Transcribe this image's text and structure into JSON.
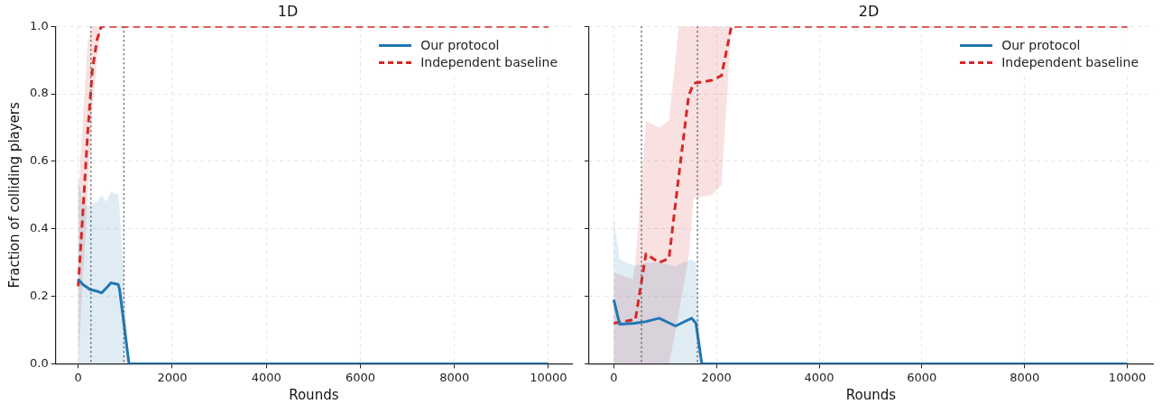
{
  "chart_data": [
    {
      "type": "line",
      "title": "1D",
      "xlabel": "Rounds",
      "ylabel": "Fraction of colliding players",
      "xlim": [
        -480,
        10500
      ],
      "xticks": [
        0,
        2000,
        4000,
        6000,
        8000,
        10000
      ],
      "ylim": [
        0,
        1
      ],
      "yticks": [
        {
          "value": 0,
          "label": "0.0"
        },
        0.2,
        0.4,
        0.6,
        0.8,
        {
          "value": 1,
          "label": "1.0"
        }
      ],
      "grid": true,
      "legend": "top right",
      "ref_lines": [
        {
          "axis": "x",
          "value": 270,
          "color": "#555555",
          "line_style": "dotted"
        },
        {
          "axis": "x",
          "value": 970,
          "color": "#555555",
          "line_style": "dotted"
        }
      ],
      "series": [
        {
          "name": "Our protocol",
          "color": "#1f77b4",
          "line_style": "solid",
          "x": [
            0,
            100,
            250,
            400,
            500,
            600,
            700,
            850,
            880,
            1080,
            10000
          ],
          "values": [
            0.25,
            0.235,
            0.22,
            0.215,
            0.21,
            0.225,
            0.24,
            0.235,
            0.22,
            0,
            0
          ],
          "lower": [
            0,
            0,
            0,
            0,
            0,
            0,
            0,
            0,
            0,
            0,
            0
          ],
          "upper": [
            0.55,
            0.47,
            0.47,
            0.48,
            0.5,
            0.48,
            0.51,
            0.5,
            0.46,
            0,
            0
          ]
        },
        {
          "name": "Independent baseline",
          "color": "#d62728",
          "line_style": "dashed",
          "x": [
            0,
            100,
            200,
            300,
            400,
            490,
            10000
          ],
          "values": [
            0.23,
            0.45,
            0.68,
            0.87,
            0.96,
            1,
            1
          ],
          "lower": [
            0,
            0.25,
            0.5,
            0.75,
            0.9,
            1,
            1
          ],
          "upper": [
            0.5,
            0.72,
            0.95,
            1,
            1,
            1,
            1
          ]
        }
      ]
    },
    {
      "type": "line",
      "title": "2D",
      "xlabel": "Rounds",
      "xlim": [
        -480,
        10500
      ],
      "xticks": [
        0,
        2000,
        4000,
        6000,
        8000,
        10000
      ],
      "ylim": [
        0,
        1
      ],
      "yticks": [
        0,
        0.2,
        0.4,
        0.6,
        0.8,
        1
      ],
      "grid": true,
      "legend": "top right",
      "tick_labels": "x",
      "ref_lines": [
        {
          "axis": "x",
          "value": 540,
          "color": "#555555",
          "line_style": "dotted"
        },
        {
          "axis": "x",
          "value": 1630,
          "color": "#555555",
          "line_style": "dotted"
        }
      ],
      "series": [
        {
          "name": "Our protocol",
          "color": "#1f77b4",
          "line_style": "solid",
          "x": [
            0,
            115,
            400,
            627,
            883,
            1203,
            1517,
            1600,
            1714,
            10000
          ],
          "values": [
            0.19,
            0.117,
            0.12,
            0.125,
            0.135,
            0.112,
            0.135,
            0.12,
            0,
            0
          ],
          "lower": [
            0,
            0,
            0,
            0,
            0,
            0,
            0,
            0,
            0,
            0
          ],
          "upper": [
            0.43,
            0.31,
            0.29,
            0.3,
            0.3,
            0.29,
            0.31,
            0.3,
            0,
            0
          ]
        },
        {
          "name": "Independent baseline",
          "color": "#d62728",
          "line_style": "dashed",
          "x": [
            0,
            371,
            420,
            627,
            883,
            1075,
            1267,
            1459,
            1555,
            1906,
            2098,
            2290,
            10000
          ],
          "values": [
            0.12,
            0.13,
            0.13,
            0.326,
            0.3,
            0.312,
            0.558,
            0.795,
            0.831,
            0.84,
            0.854,
            1,
            1
          ],
          "lower": [
            0,
            0,
            0,
            0,
            0,
            0,
            0.15,
            0.32,
            0.49,
            0.5,
            0.53,
            1,
            1
          ],
          "upper": [
            0.27,
            0.25,
            0.3,
            0.72,
            0.7,
            0.72,
            1,
            1,
            1,
            1,
            1,
            1,
            1
          ]
        }
      ]
    }
  ]
}
